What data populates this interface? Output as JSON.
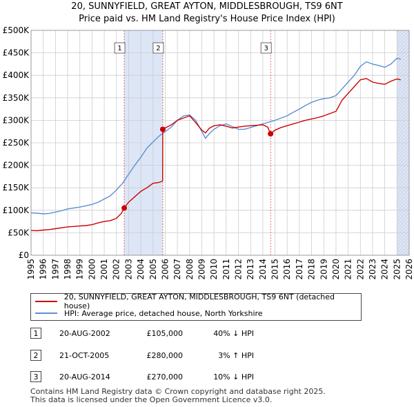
{
  "title_line1": "20, SUNNYFIELD, GREAT AYTON, MIDDLESBROUGH, TS9 6NT",
  "title_line2": "Price paid vs. HM Land Registry's House Price Index (HPI)",
  "colors": {
    "price": "#cc0000",
    "hpi": "#5b8fd1",
    "shade": "#dde6f7",
    "grid": "#cccccc",
    "marker_line": "#dd5555"
  },
  "chart_data": {
    "type": "line",
    "title": "Price paid vs. HM Land Registry's House Price Index (HPI)",
    "xlabel": "",
    "ylabel": "",
    "xlim": [
      1995,
      2026
    ],
    "ylim": [
      0,
      500000
    ],
    "x_ticks": [
      "1995",
      "1996",
      "1997",
      "1998",
      "1999",
      "2000",
      "2001",
      "2002",
      "2003",
      "2004",
      "2005",
      "2006",
      "2007",
      "2008",
      "2009",
      "2010",
      "2011",
      "2012",
      "2013",
      "2014",
      "2015",
      "2016",
      "2017",
      "2018",
      "2019",
      "2020",
      "2021",
      "2022",
      "2023",
      "2024",
      "2025",
      "2026"
    ],
    "y_ticks": [
      {
        "value": 0,
        "label": "£0"
      },
      {
        "value": 50000,
        "label": "£50K"
      },
      {
        "value": 100000,
        "label": "£100K"
      },
      {
        "value": 150000,
        "label": "£150K"
      },
      {
        "value": 200000,
        "label": "£200K"
      },
      {
        "value": 250000,
        "label": "£250K"
      },
      {
        "value": 300000,
        "label": "£300K"
      },
      {
        "value": 350000,
        "label": "£350K"
      },
      {
        "value": 400000,
        "label": "£400K"
      },
      {
        "value": 450000,
        "label": "£450K"
      },
      {
        "value": 500000,
        "label": "£500K"
      }
    ],
    "shaded_ranges": [
      [
        2002.64,
        2005.8
      ],
      [
        2025.0,
        2026.0
      ]
    ],
    "series": [
      {
        "name": "20, SUNNYFIELD, GREAT AYTON, MIDDLESBROUGH, TS9 6NT (detached house)",
        "color": "#cc0000",
        "x": [
          1995,
          1995.5,
          1996,
          1996.5,
          1997,
          1997.5,
          1998,
          1998.5,
          1999,
          1999.5,
          2000,
          2000.5,
          2001,
          2001.5,
          2002,
          2002.4,
          2002.64,
          2003,
          2003.5,
          2004,
          2004.5,
          2005,
          2005.5,
          2005.79,
          2005.8,
          2006,
          2006.5,
          2007,
          2007.5,
          2008,
          2008.5,
          2009,
          2009.3,
          2009.6,
          2010,
          2010.5,
          2011,
          2011.5,
          2012,
          2012.5,
          2013,
          2013.5,
          2014,
          2014.4,
          2014.64,
          2015,
          2015.5,
          2016,
          2016.5,
          2017,
          2017.5,
          2018,
          2018.5,
          2019,
          2019.5,
          2020,
          2020.5,
          2021,
          2021.5,
          2022,
          2022.5,
          2023,
          2023.5,
          2024,
          2024.5,
          2025,
          2025.3
        ],
        "y": [
          55000,
          54500,
          56000,
          57000,
          59000,
          61000,
          63000,
          64000,
          65000,
          66000,
          68000,
          72000,
          75000,
          77000,
          82000,
          93000,
          105000,
          118000,
          130000,
          142000,
          150000,
          160000,
          162000,
          165000,
          280000,
          283000,
          290000,
          300000,
          305000,
          310000,
          295000,
          278000,
          272000,
          282000,
          288000,
          290000,
          287000,
          283000,
          285000,
          287000,
          288000,
          289000,
          290000,
          285000,
          270000,
          278000,
          284000,
          288000,
          292000,
          296000,
          300000,
          303000,
          306000,
          310000,
          315000,
          320000,
          345000,
          360000,
          375000,
          390000,
          393000,
          385000,
          382000,
          380000,
          387000,
          392000,
          390000
        ]
      },
      {
        "name": "HPI: Average price, detached house, North Yorkshire",
        "color": "#5b8fd1",
        "x": [
          1995,
          1995.5,
          1996,
          1996.5,
          1997,
          1997.5,
          1998,
          1998.5,
          1999,
          1999.5,
          2000,
          2000.5,
          2001,
          2001.5,
          2002,
          2002.5,
          2003,
          2003.5,
          2004,
          2004.5,
          2005,
          2005.5,
          2006,
          2006.5,
          2007,
          2007.5,
          2008,
          2008.5,
          2009,
          2009.3,
          2009.6,
          2010,
          2010.5,
          2011,
          2011.5,
          2012,
          2012.5,
          2013,
          2013.5,
          2014,
          2014.5,
          2015,
          2015.5,
          2016,
          2016.5,
          2017,
          2017.5,
          2018,
          2018.5,
          2019,
          2019.5,
          2020,
          2020.5,
          2021,
          2021.5,
          2022,
          2022.5,
          2023,
          2023.5,
          2024,
          2024.5,
          2025,
          2025.3
        ],
        "y": [
          94000,
          93500,
          92000,
          93000,
          96000,
          99000,
          103000,
          105000,
          107000,
          110000,
          113000,
          118000,
          125000,
          132000,
          145000,
          160000,
          180000,
          200000,
          218000,
          238000,
          252000,
          265000,
          275000,
          285000,
          300000,
          310000,
          312000,
          300000,
          275000,
          260000,
          270000,
          280000,
          288000,
          292000,
          286000,
          280000,
          280000,
          284000,
          288000,
          292000,
          296000,
          300000,
          305000,
          310000,
          318000,
          325000,
          333000,
          340000,
          345000,
          348000,
          350000,
          355000,
          370000,
          385000,
          400000,
          420000,
          430000,
          425000,
          422000,
          418000,
          425000,
          438000,
          436000
        ]
      }
    ],
    "annotations": [
      {
        "label": "1",
        "x": 2002.64,
        "y": 105000
      },
      {
        "label": "2",
        "x": 2005.8,
        "y": 280000
      },
      {
        "label": "3",
        "x": 2014.64,
        "y": 270000
      }
    ]
  },
  "legend": {
    "price_label": "20, SUNNYFIELD, GREAT AYTON, MIDDLESBROUGH, TS9 6NT (detached house)",
    "hpi_label": "HPI: Average price, detached house, North Yorkshire"
  },
  "transactions": [
    {
      "num": "1",
      "date": "20-AUG-2002",
      "price": "£105,000",
      "hpi": "40% ↓ HPI"
    },
    {
      "num": "2",
      "date": "21-OCT-2005",
      "price": "£280,000",
      "hpi": "3% ↑ HPI"
    },
    {
      "num": "3",
      "date": "20-AUG-2014",
      "price": "£270,000",
      "hpi": "10% ↓ HPI"
    }
  ],
  "footer_line1": "Contains HM Land Registry data © Crown copyright and database right 2025.",
  "footer_line2": "This data is licensed under the Open Government Licence v3.0."
}
